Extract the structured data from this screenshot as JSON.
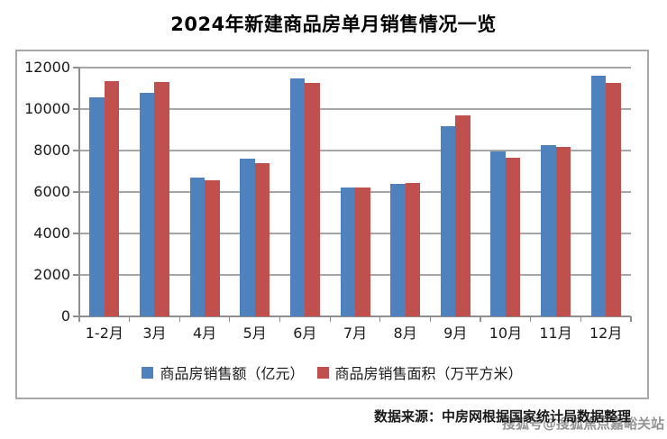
{
  "page": {
    "title": "2024年新建商品房单月销售情况一览"
  },
  "chart_data": {
    "type": "bar",
    "title": "2024年新建商品房单月销售情况一览",
    "categories": [
      "1-2月",
      "3月",
      "4月",
      "5月",
      "6月",
      "7月",
      "8月",
      "9月",
      "10月",
      "11月",
      "12月"
    ],
    "series": [
      {
        "name": "商品房销售额（亿元）",
        "color": "#4F81BD",
        "values": [
          10566,
          10789,
          6712,
          7598,
          11468,
          6197,
          6393,
          9157,
          7975,
          8270,
          11625
        ]
      },
      {
        "name": "商品房销售面积（万平方米）",
        "color": "#C0504D",
        "values": [
          11369,
          11299,
          6584,
          7390,
          11274,
          6233,
          6453,
          9682,
          7646,
          8188,
          11267
        ]
      }
    ],
    "xlabel": "",
    "ylabel": "",
    "ylim": [
      0,
      12000
    ],
    "ytick_step": 2000,
    "yticks": [
      "0",
      "2000",
      "4000",
      "6000",
      "8000",
      "10000",
      "12000"
    ],
    "grid": true,
    "legend_position": "bottom"
  },
  "footer": {
    "source": "数据来源：中房网根据国家统计局数据整理",
    "watermark": "搜狐号@搜狐焦点嘉峪关站"
  },
  "colors": {
    "grid": "#a6a6a6",
    "axis": "#8e8e8e",
    "frame_border": "#a8a8a8",
    "series1": "#4F81BD",
    "series2": "#C0504D"
  }
}
